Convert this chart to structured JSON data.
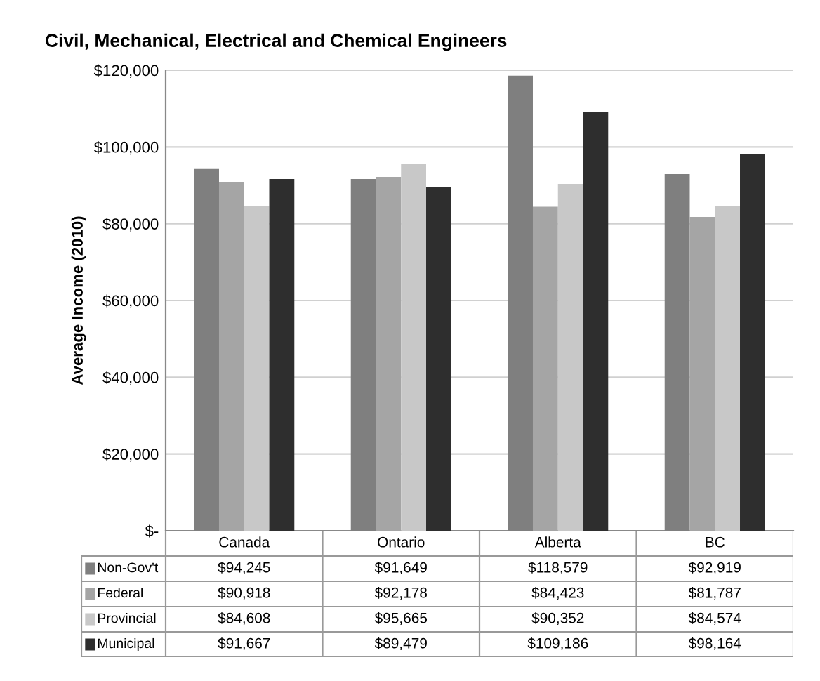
{
  "chart_data": {
    "type": "bar",
    "title": "Civil, Mechanical, Electrical and Chemical Engineers",
    "ylabel": "Average Income (2010)",
    "categories": [
      "Canada",
      "Ontario",
      "Alberta",
      "BC"
    ],
    "series": [
      {
        "name": "Non-Gov't",
        "color": "#7f7f7f",
        "values": [
          94245,
          91649,
          118579,
          92919
        ],
        "value_labels": [
          "$94,245",
          "$91,649",
          "$118,579",
          "$92,919"
        ]
      },
      {
        "name": "Federal",
        "color": "#a5a5a5",
        "values": [
          90918,
          92178,
          84423,
          81787
        ],
        "value_labels": [
          "$90,918",
          "$92,178",
          "$84,423",
          "$81,787"
        ]
      },
      {
        "name": "Provincial",
        "color": "#c8c8c8",
        "values": [
          84608,
          95665,
          90352,
          84574
        ],
        "value_labels": [
          "$84,608",
          "$95,665",
          "$90,352",
          "$84,574"
        ]
      },
      {
        "name": "Municipal",
        "color": "#2e2e2e",
        "values": [
          91667,
          89479,
          109186,
          98164
        ],
        "value_labels": [
          "$91,667",
          "$89,479",
          "$109,186",
          "$98,164"
        ]
      }
    ],
    "ylim": [
      0,
      120000
    ],
    "yticks": [
      {
        "value": 0,
        "label": "$-"
      },
      {
        "value": 20000,
        "label": "$20,000"
      },
      {
        "value": 40000,
        "label": "$40,000"
      },
      {
        "value": 60000,
        "label": "$60,000"
      },
      {
        "value": 80000,
        "label": "$80,000"
      },
      {
        "value": 100000,
        "label": "$100,000"
      },
      {
        "value": 120000,
        "label": "$120,000"
      }
    ],
    "grid": "y",
    "legend": "bottom left"
  }
}
